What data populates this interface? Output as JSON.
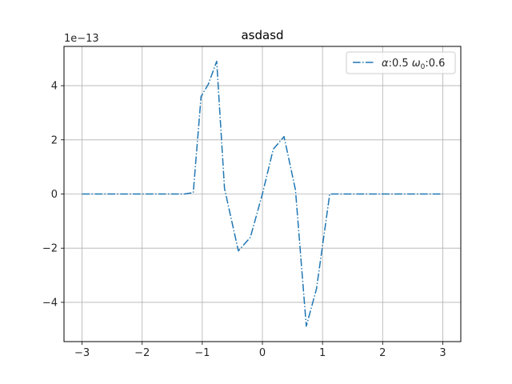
{
  "chart_data": {
    "type": "line",
    "title": "asdasd",
    "xlabel": "",
    "ylabel": "",
    "y_offset_label": "1e−13",
    "xlim": [
      -3.3,
      3.3
    ],
    "ylim": [
      -5.45,
      5.45
    ],
    "x_ticks": [
      -3,
      -2,
      -1,
      0,
      1,
      2,
      3
    ],
    "x_tick_labels": [
      "−3",
      "−2",
      "−1",
      "0",
      "1",
      "2",
      "3"
    ],
    "y_ticks": [
      -4,
      -2,
      0,
      2,
      4
    ],
    "y_tick_labels": [
      "−4",
      "−2",
      "0",
      "2",
      "4"
    ],
    "grid": true,
    "legend_position": "top-right",
    "series": [
      {
        "name": "α:0.5 ω₀:0.6",
        "legend_parts": {
          "alpha_symbol": "α",
          "alpha_value": ":0.5 ",
          "omega_symbol": "ω",
          "omega_subscript": "0",
          "omega_value": ":0.6"
        },
        "color": "#1f77b4",
        "line_style": "dash-dot",
        "x": [
          -3.0,
          -2.8,
          -2.6,
          -2.4,
          -2.2,
          -2.0,
          -1.8,
          -1.6,
          -1.4,
          -1.3,
          -1.15,
          -1.02,
          -0.9,
          -0.76,
          -0.63,
          -0.4,
          -0.2,
          0.0,
          0.18,
          0.36,
          0.55,
          0.73,
          0.9,
          1.12,
          1.3,
          1.5,
          1.8,
          2.1,
          2.4,
          2.7,
          3.0
        ],
        "values": [
          0,
          0,
          0,
          0,
          0,
          0,
          0,
          0,
          0,
          0,
          0.05,
          3.6,
          4.05,
          4.9,
          0.2,
          -2.1,
          -1.6,
          0,
          1.65,
          2.12,
          0.15,
          -4.88,
          -3.5,
          0,
          0,
          0,
          0,
          0,
          0,
          0,
          0
        ]
      }
    ]
  }
}
